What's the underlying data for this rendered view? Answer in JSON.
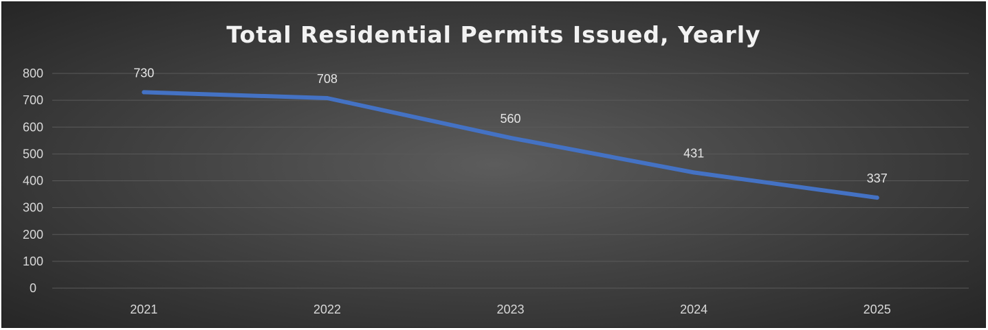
{
  "chart_data": {
    "type": "line",
    "title": "Total Residential Permits Issued, Yearly",
    "xlabel": "",
    "ylabel": "",
    "categories": [
      "2021",
      "2022",
      "2023",
      "2024",
      "2025"
    ],
    "series": [
      {
        "values": [
          730,
          708,
          560,
          431,
          337
        ]
      }
    ],
    "ylim": [
      0,
      800
    ],
    "yticks": [
      0,
      100,
      200,
      300,
      400,
      500,
      600,
      700,
      800
    ],
    "grid": true,
    "legend": "none",
    "data_labels": true,
    "colors": {
      "line": "#4472c4",
      "background": "#404040",
      "grid": "#5a5a5a",
      "text": "#d9d9d9"
    }
  }
}
